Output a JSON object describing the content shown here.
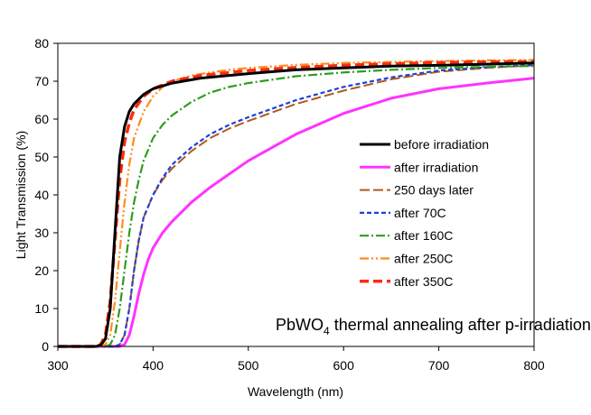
{
  "chart_data": {
    "type": "line",
    "xlabel": "Wavelength (nm)",
    "ylabel": "Light Transmission (%)",
    "xlim": [
      300,
      800
    ],
    "ylim": [
      0,
      80
    ],
    "xticks": [
      300,
      400,
      500,
      600,
      700,
      800
    ],
    "yticks": [
      0,
      10,
      20,
      30,
      40,
      50,
      60,
      70,
      80
    ],
    "grid": false,
    "legend_position": "right",
    "annotation": {
      "prefix": "PbWO",
      "subscript": "4",
      "suffix": " thermal annealing after p-irradiation"
    },
    "series": [
      {
        "name": "before irradiation",
        "color": "#000000",
        "dash": "solid",
        "x": [
          300,
          340,
          345,
          350,
          355,
          360,
          365,
          370,
          375,
          380,
          390,
          400,
          420,
          450,
          500,
          550,
          600,
          650,
          700,
          750,
          800
        ],
        "y": [
          0,
          0,
          0.3,
          2,
          10,
          30,
          50,
          58,
          62,
          64,
          66.5,
          68,
          69.5,
          70.8,
          72,
          73,
          73.5,
          74,
          74.2,
          74.5,
          74.8
        ]
      },
      {
        "name": "after irradiation",
        "color": "#ff33ff",
        "dash": "solid",
        "x": [
          300,
          365,
          370,
          375,
          380,
          385,
          390,
          395,
          400,
          410,
          420,
          440,
          460,
          480,
          500,
          550,
          600,
          650,
          700,
          750,
          800
        ],
        "y": [
          0,
          0,
          0.5,
          3,
          8,
          14,
          19,
          23,
          26,
          30,
          33,
          38,
          42,
          45.5,
          49,
          56,
          61.5,
          65.5,
          68,
          69.5,
          70.8
        ]
      },
      {
        "name": "250 days later",
        "color": "#b05a1e",
        "dash": "longdash",
        "x": [
          300,
          360,
          365,
          370,
          375,
          380,
          385,
          390,
          400,
          410,
          420,
          440,
          460,
          480,
          500,
          550,
          600,
          650,
          700,
          750,
          800
        ],
        "y": [
          0,
          0,
          0.5,
          3,
          10,
          20,
          28,
          34,
          40,
          44,
          47,
          51.5,
          55,
          57.5,
          59.5,
          64,
          67.5,
          70.5,
          72.5,
          73.5,
          74.2
        ]
      },
      {
        "name": "after 70C",
        "color": "#1f3fd9",
        "dash": "dash",
        "x": [
          300,
          360,
          365,
          370,
          375,
          380,
          385,
          390,
          400,
          410,
          420,
          440,
          460,
          480,
          500,
          550,
          600,
          650,
          700,
          750,
          800
        ],
        "y": [
          0,
          0,
          0.5,
          3,
          10,
          20,
          28,
          34,
          40,
          44.5,
          48,
          52.5,
          56,
          58.5,
          60.5,
          65,
          68.5,
          71,
          72.8,
          73.7,
          74.3
        ]
      },
      {
        "name": "after 160C",
        "color": "#2e9c1f",
        "dash": "dashdot",
        "x": [
          300,
          350,
          355,
          360,
          365,
          370,
          375,
          380,
          385,
          390,
          400,
          410,
          420,
          440,
          460,
          480,
          500,
          550,
          600,
          650,
          700,
          750,
          800
        ],
        "y": [
          0,
          0,
          0.5,
          3,
          10,
          20,
          30,
          38,
          44,
          49,
          55,
          58.5,
          61,
          64.5,
          67,
          68.5,
          69.5,
          71.3,
          72.3,
          73,
          73.5,
          73.8,
          74
        ]
      },
      {
        "name": "after 250C",
        "color": "#ff8c1a",
        "dash": "dashdotdot",
        "x": [
          300,
          345,
          350,
          355,
          360,
          365,
          370,
          375,
          380,
          390,
          400,
          410,
          420,
          440,
          460,
          480,
          500,
          550,
          600,
          650,
          700,
          750,
          800
        ],
        "y": [
          0,
          0,
          0.5,
          3,
          12,
          25,
          38,
          48,
          55,
          62,
          66,
          68.5,
          70,
          71.5,
          72.3,
          73,
          73.5,
          74.3,
          74.8,
          75.1,
          75.3,
          75.5,
          75.6
        ]
      },
      {
        "name": "after 350C",
        "color": "#ff2a0f",
        "dash": "heavydash",
        "x": [
          300,
          340,
          345,
          350,
          355,
          360,
          365,
          370,
          375,
          380,
          390,
          400,
          420,
          450,
          500,
          550,
          600,
          650,
          700,
          750,
          800
        ],
        "y": [
          0,
          0,
          0.5,
          3,
          12,
          28,
          44,
          54,
          59,
          62.5,
          66,
          68,
          70,
          71.5,
          72.8,
          73.6,
          74.2,
          74.6,
          74.9,
          75.1,
          75.2
        ]
      }
    ]
  }
}
